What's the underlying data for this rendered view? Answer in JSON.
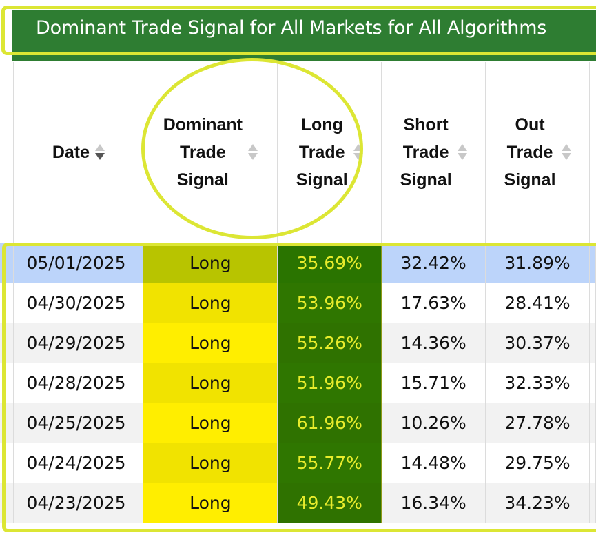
{
  "banner": {
    "title": "Dominant Trade Signal for All Markets for All Algorithms"
  },
  "colors": {
    "banner_green": "#2e7d32",
    "highlight_yellow_outline": "#dce634",
    "long_pct_green": "#2a7a00",
    "long_pct_text": "#e8ec2c",
    "dominant_yellow": "#ffee00",
    "selected_row_blue": "#bcd4fa"
  },
  "table": {
    "headers": {
      "date": "Date",
      "dominant_l1": "Dominant",
      "dominant_l2": "Trade",
      "dominant_l3": "Signal",
      "long_l1": "Long",
      "long_l2": "Trade",
      "long_l3": "Signal",
      "short_l1": "Short",
      "short_l2": "Trade",
      "short_l3": "Signal",
      "out_l1": "Out",
      "out_l2": "Trade",
      "out_l3": "Signal"
    },
    "sort": {
      "column": "Date",
      "direction": "descending"
    },
    "rows": [
      {
        "date": "05/01/2025",
        "dominant": "Long",
        "long": "35.69%",
        "short": "32.42%",
        "out": "31.89%",
        "selected": true
      },
      {
        "date": "04/30/2025",
        "dominant": "Long",
        "long": "53.96%",
        "short": "17.63%",
        "out": "28.41%"
      },
      {
        "date": "04/29/2025",
        "dominant": "Long",
        "long": "55.26%",
        "short": "14.36%",
        "out": "30.37%"
      },
      {
        "date": "04/28/2025",
        "dominant": "Long",
        "long": "51.96%",
        "short": "15.71%",
        "out": "32.33%"
      },
      {
        "date": "04/25/2025",
        "dominant": "Long",
        "long": "61.96%",
        "short": "10.26%",
        "out": "27.78%"
      },
      {
        "date": "04/24/2025",
        "dominant": "Long",
        "long": "55.77%",
        "short": "14.48%",
        "out": "29.75%"
      },
      {
        "date": "04/23/2025",
        "dominant": "Long",
        "long": "49.43%",
        "short": "16.34%",
        "out": "34.23%"
      }
    ]
  }
}
